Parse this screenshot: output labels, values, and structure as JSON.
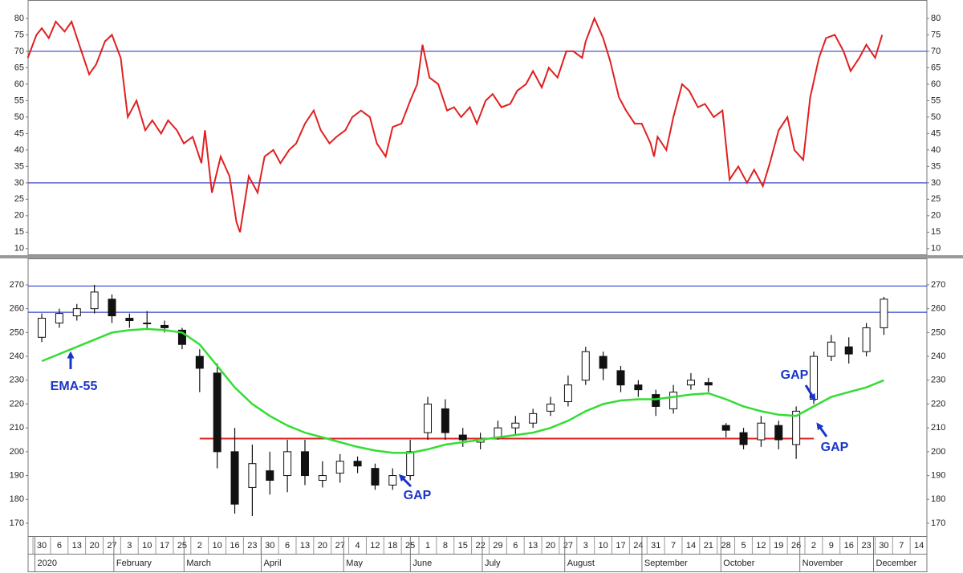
{
  "chart_data": [
    {
      "type": "line",
      "x": [
        -0.8,
        -0.3,
        0,
        0.4,
        0.8,
        1.3,
        1.7,
        2.2,
        2.7,
        3.1,
        3.6,
        4,
        4.5,
        4.9,
        5.4,
        5.9,
        6.3,
        6.8,
        7.2,
        7.7,
        8.1,
        8.6,
        9.1,
        9.3,
        9.7,
        10.2,
        10.7,
        11.1,
        11.3,
        11.8,
        12.3,
        12.7,
        13.2,
        13.6,
        14.1,
        14.5,
        15,
        15.5,
        15.9,
        16.4,
        16.8,
        17.3,
        17.7,
        18.2,
        18.7,
        19.1,
        19.6,
        20,
        20.5,
        21,
        21.4,
        21.7,
        22.1,
        22.6,
        23.1,
        23.5,
        23.9,
        24.4,
        24.8,
        25.3,
        25.7,
        26.2,
        26.7,
        27.1,
        27.6,
        28,
        28.5,
        28.9,
        29.4,
        29.9,
        30.3,
        30.8,
        31,
        31.5,
        32,
        32.4,
        32.9,
        33.3,
        33.8,
        34.2,
        34.7,
        34.9,
        35.1,
        35.6,
        36,
        36.5,
        36.9,
        37.4,
        37.8,
        38.3,
        38.8,
        39.2,
        39.7,
        40.2,
        40.6,
        41.1,
        41.5,
        42,
        42.5,
        42.9,
        43.4,
        43.8,
        44.3,
        44.7,
        45.2,
        45.7,
        46.1,
        46.6,
        47,
        47.5,
        47.9
      ],
      "series": [
        {
          "color": "#e02020",
          "values": [
            68,
            75,
            77,
            74,
            79,
            76,
            79,
            71,
            63,
            66,
            73,
            75,
            68,
            50,
            55,
            46,
            49,
            45,
            49,
            46,
            42,
            44,
            36,
            46,
            27,
            38,
            32,
            18,
            15,
            32,
            27,
            38,
            40,
            36,
            40,
            42,
            48,
            52,
            46,
            42,
            44,
            46,
            50,
            52,
            50,
            42,
            38,
            47,
            48,
            55,
            60,
            72,
            62,
            60,
            52,
            53,
            50,
            53,
            48,
            55,
            57,
            53,
            54,
            58,
            60,
            64,
            59,
            65,
            62,
            70,
            70,
            68,
            73,
            80,
            74,
            67,
            56,
            52,
            48,
            48,
            42,
            38,
            44,
            40,
            50,
            60,
            58,
            53,
            54,
            50,
            52,
            31,
            35,
            30,
            34,
            29,
            36,
            46,
            50,
            40,
            37,
            56,
            68,
            74,
            75,
            70,
            64,
            68,
            72,
            68,
            75
          ]
        }
      ],
      "ylim": [
        8,
        85.6
      ],
      "yticks": [
        10,
        15,
        20,
        25,
        30,
        35,
        40,
        45,
        50,
        55,
        60,
        65,
        70,
        75,
        80
      ],
      "levels": [
        {
          "value": 70,
          "color": "#3344cc"
        },
        {
          "value": 30,
          "color": "#3344cc"
        }
      ]
    },
    {
      "type": "candlestick",
      "x": [
        0,
        1,
        2,
        3,
        4,
        5,
        6,
        7,
        8,
        9,
        10,
        11,
        12,
        13,
        14,
        15,
        16,
        17,
        18,
        19,
        20,
        21,
        22,
        23,
        24,
        25,
        26,
        27,
        28,
        29,
        30,
        31,
        32,
        33,
        34,
        35,
        36,
        37,
        38,
        39,
        40,
        41,
        42,
        43,
        44,
        45,
        46,
        47,
        48
      ],
      "open": [
        248,
        254,
        257,
        260,
        264,
        256,
        254,
        253,
        251,
        240,
        233,
        200,
        185,
        192,
        190,
        200,
        188,
        191,
        196,
        193,
        186,
        190,
        208,
        218,
        207,
        204,
        206,
        210,
        212,
        217,
        221,
        230,
        240,
        234,
        228,
        224,
        218,
        228,
        229,
        211,
        208,
        205,
        211,
        203,
        222,
        240,
        244,
        242,
        252
      ],
      "high": [
        258,
        260,
        262,
        270,
        266,
        258,
        259,
        255,
        252,
        243,
        237,
        210,
        203,
        200,
        205,
        205,
        196,
        199,
        198,
        195,
        193,
        205,
        223,
        222,
        210,
        208,
        213,
        215,
        218,
        223,
        232,
        244,
        242,
        236,
        230,
        226,
        228,
        233,
        231,
        212,
        210,
        215,
        213,
        219,
        242,
        249,
        248,
        254,
        265
      ],
      "low": [
        246,
        252,
        255,
        258,
        254,
        252,
        251,
        250,
        243,
        225,
        193,
        174,
        173,
        182,
        183,
        186,
        185,
        187,
        191,
        184,
        184,
        188,
        205,
        205,
        202,
        201,
        205,
        207,
        210,
        215,
        219,
        228,
        230,
        225,
        223,
        215,
        216,
        226,
        225,
        206,
        201,
        202,
        201,
        197,
        220,
        238,
        237,
        240,
        249
      ],
      "close": [
        256,
        258,
        260,
        267,
        257,
        255,
        254,
        252,
        245,
        235,
        200,
        178,
        195,
        188,
        200,
        190,
        190,
        196,
        194,
        186,
        190,
        200,
        220,
        208,
        205,
        205,
        210,
        212,
        216,
        220,
        228,
        242,
        235,
        228,
        226,
        219,
        225,
        230,
        228,
        209,
        203,
        212,
        205,
        217,
        240,
        246,
        241,
        252,
        264
      ],
      "ema": {
        "color": "#33dd33",
        "values": [
          238,
          241,
          244,
          247,
          250,
          251,
          251.5,
          251,
          250,
          245,
          236,
          227,
          220,
          215,
          211,
          208,
          206,
          204,
          202,
          200.5,
          199.5,
          199.5,
          201,
          203,
          204,
          205,
          206,
          207,
          208,
          210,
          213,
          217,
          220,
          221.5,
          222,
          222,
          223,
          224,
          224.5,
          222,
          219,
          217,
          215.5,
          215,
          219,
          223,
          225,
          227,
          230
        ]
      },
      "ylim": [
        164.6,
        281.1
      ],
      "yticks": [
        170,
        180,
        190,
        200,
        210,
        220,
        230,
        240,
        250,
        260,
        270
      ],
      "levels": [
        {
          "value": 269.5,
          "color": "#3344cc"
        },
        {
          "value": 258.5,
          "color": "#3344cc"
        },
        {
          "value": 205.5,
          "color": "#dd2222",
          "x": [
            9,
            44
          ]
        }
      ],
      "xlim": [
        -0.78,
        50.45
      ],
      "xticks": [
        {
          "value": 0,
          "label": "30"
        },
        {
          "value": 1,
          "label": "6"
        },
        {
          "value": 2,
          "label": "13"
        },
        {
          "value": 3,
          "label": "20"
        },
        {
          "value": 4,
          "label": "27"
        },
        {
          "value": 5,
          "label": "3"
        },
        {
          "value": 6,
          "label": "10"
        },
        {
          "value": 7,
          "label": "17"
        },
        {
          "value": 8,
          "label": "25"
        },
        {
          "value": 9,
          "label": "2"
        },
        {
          "value": 10,
          "label": "10"
        },
        {
          "value": 11,
          "label": "16"
        },
        {
          "value": 12,
          "label": "23"
        },
        {
          "value": 13,
          "label": "30"
        },
        {
          "value": 14,
          "label": "6"
        },
        {
          "value": 15,
          "label": "13"
        },
        {
          "value": 16,
          "label": "20"
        },
        {
          "value": 17,
          "label": "27"
        },
        {
          "value": 18,
          "label": "4"
        },
        {
          "value": 19,
          "label": "12"
        },
        {
          "value": 20,
          "label": "18"
        },
        {
          "value": 21,
          "label": "25"
        },
        {
          "value": 22,
          "label": "1"
        },
        {
          "value": 23,
          "label": "8"
        },
        {
          "value": 24,
          "label": "15"
        },
        {
          "value": 25,
          "label": "22"
        },
        {
          "value": 26,
          "label": "29"
        },
        {
          "value": 27,
          "label": "6"
        },
        {
          "value": 28,
          "label": "13"
        },
        {
          "value": 29,
          "label": "20"
        },
        {
          "value": 30,
          "label": "27"
        },
        {
          "value": 31,
          "label": "3"
        },
        {
          "value": 32,
          "label": "10"
        },
        {
          "value": 33,
          "label": "17"
        },
        {
          "value": 34,
          "label": "24"
        },
        {
          "value": 35,
          "label": "31"
        },
        {
          "value": 36,
          "label": "7"
        },
        {
          "value": 37,
          "label": "14"
        },
        {
          "value": 38,
          "label": "21"
        },
        {
          "value": 39,
          "label": "28"
        },
        {
          "value": 40,
          "label": "5"
        },
        {
          "value": 41,
          "label": "12"
        },
        {
          "value": 42,
          "label": "19"
        },
        {
          "value": 43,
          "label": "26"
        },
        {
          "value": 44,
          "label": "2"
        },
        {
          "value": 45,
          "label": "9"
        },
        {
          "value": 46,
          "label": "16"
        },
        {
          "value": 47,
          "label": "23"
        },
        {
          "value": 48,
          "label": "30"
        },
        {
          "value": 49,
          "label": "7"
        },
        {
          "value": 50,
          "label": "14"
        }
      ],
      "months": [
        {
          "value": -0.3,
          "label": "2020"
        },
        {
          "value": 4.2,
          "label": "February"
        },
        {
          "value": 8.2,
          "label": "March"
        },
        {
          "value": 12.6,
          "label": "April"
        },
        {
          "value": 17.3,
          "label": "May"
        },
        {
          "value": 21.1,
          "label": "June"
        },
        {
          "value": 25.2,
          "label": "July"
        },
        {
          "value": 29.9,
          "label": "August"
        },
        {
          "value": 34.3,
          "label": "September"
        },
        {
          "value": 38.8,
          "label": "October"
        },
        {
          "value": 43.3,
          "label": "November"
        },
        {
          "value": 47.5,
          "label": "December"
        }
      ],
      "annotations": [
        "EMA-55",
        "GAP",
        "GAP",
        "GAP"
      ]
    }
  ]
}
